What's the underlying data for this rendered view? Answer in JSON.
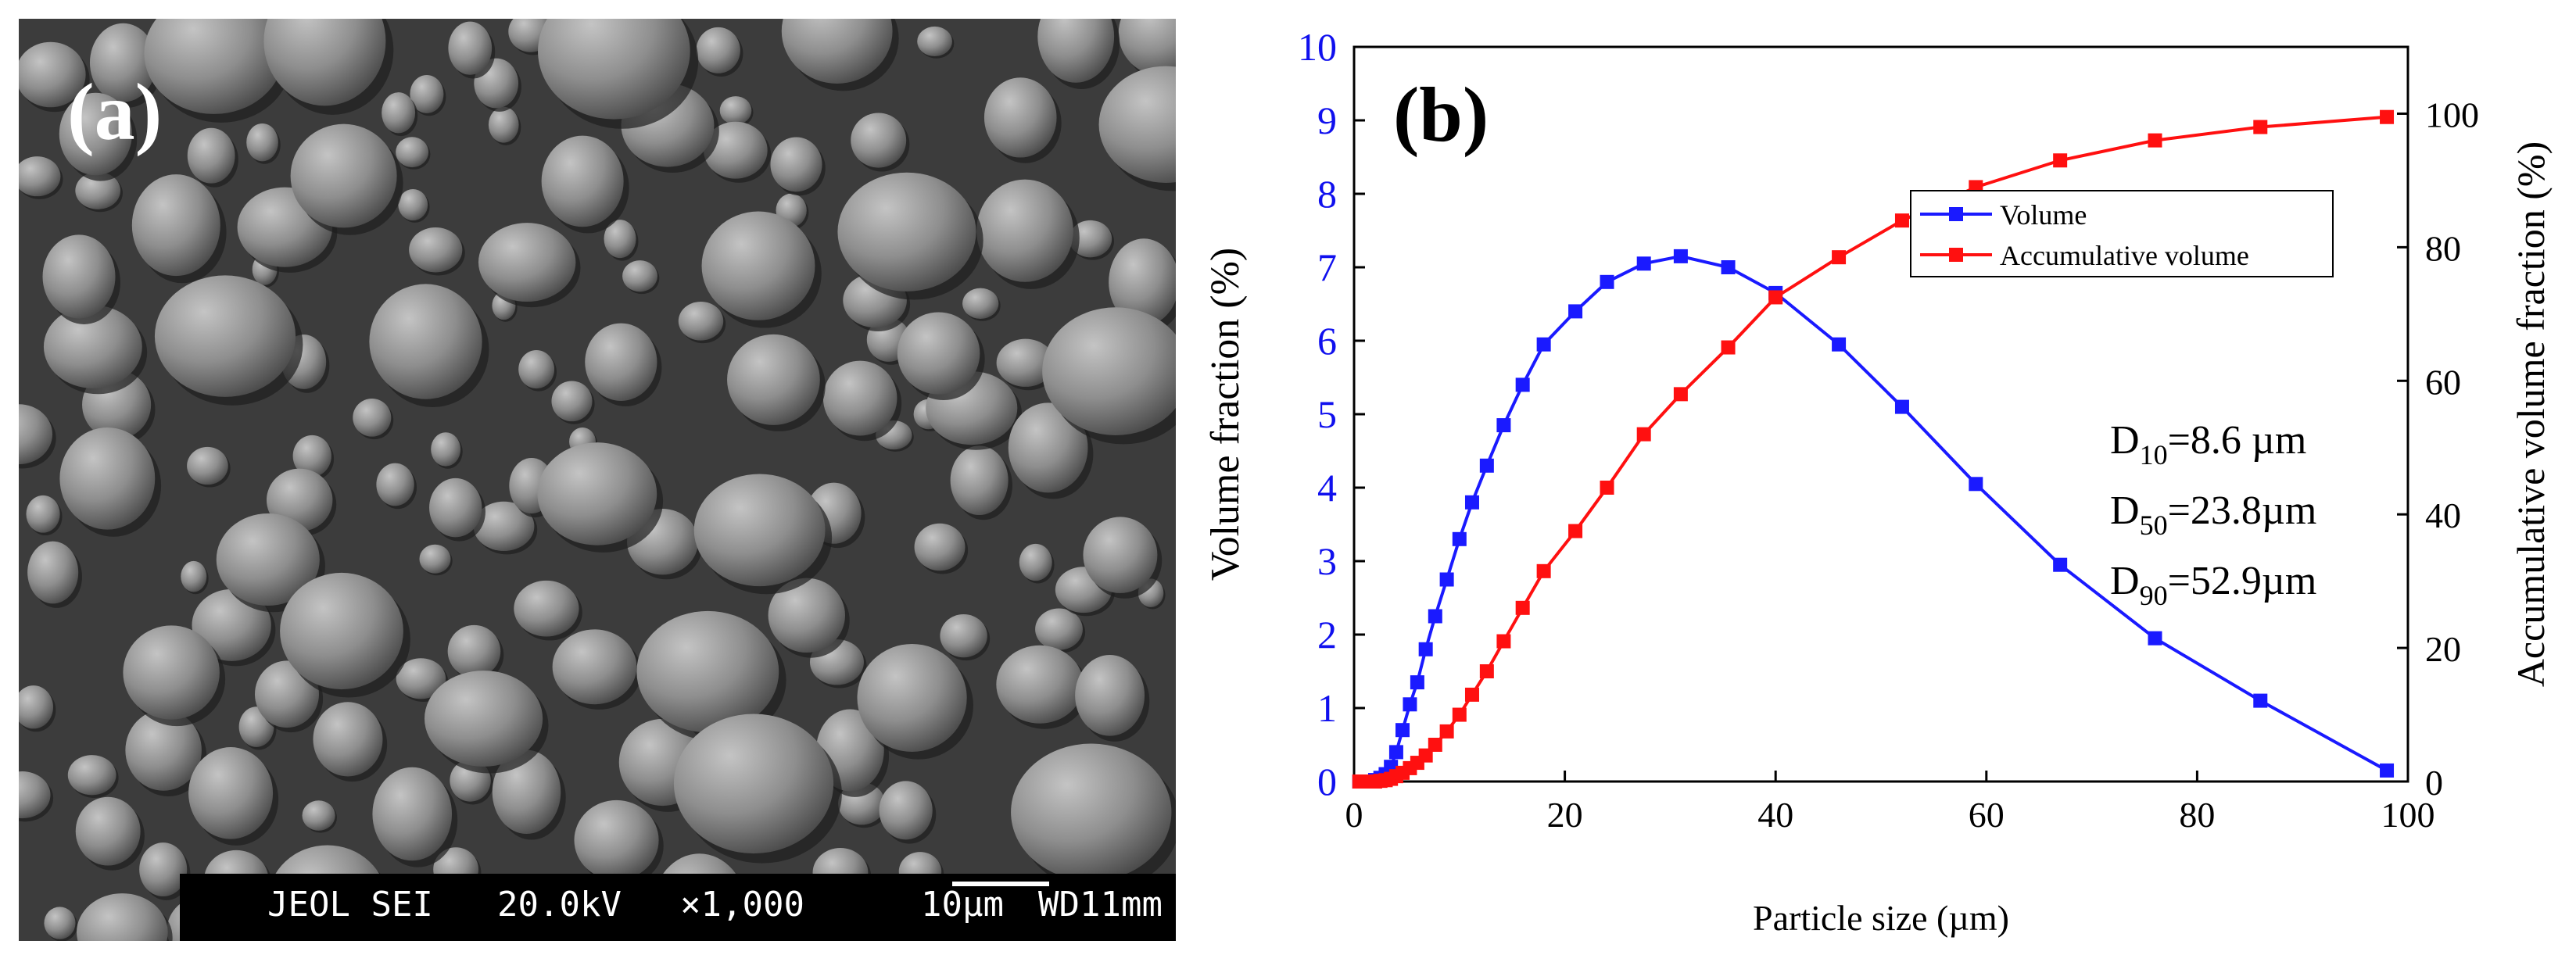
{
  "panel_a": {
    "label": "(a)",
    "sem_info": {
      "instrument": "JEOL SEI",
      "voltage": "20.0kV",
      "magnification": "×1,000",
      "scale": "10µm",
      "working_distance": "WD11mm"
    }
  },
  "chart_data": {
    "type": "line",
    "panel_label": "(b)",
    "xlabel": "Particle size (µm)",
    "ylabel_left": "Volume fraction (%)",
    "ylabel_right": "Accumulative volume fraction (%)",
    "xlim": [
      0,
      100
    ],
    "ylim_left": [
      0,
      10
    ],
    "ylim_right": [
      0,
      110
    ],
    "x_ticks": [
      "0",
      "20",
      "40",
      "60",
      "80",
      "100"
    ],
    "y_left_ticks": [
      "0",
      "1",
      "2",
      "3",
      "4",
      "5",
      "6",
      "7",
      "8",
      "9",
      "10"
    ],
    "y_right_ticks": [
      "0",
      "20",
      "40",
      "60",
      "80",
      "100"
    ],
    "legend": {
      "position": "top-right"
    },
    "annotations": [
      {
        "main": "D",
        "sub": "10",
        "rest": "=8.6 µm"
      },
      {
        "main": "D",
        "sub": "50",
        "rest": "=23.8µm"
      },
      {
        "main": "D",
        "sub": "90",
        "rest": "=52.9µm"
      }
    ],
    "colors": {
      "left_axis": "#1010ee",
      "volume": "#1a1aff",
      "accumulative": "#ff1010"
    },
    "series": [
      {
        "name": "Volume",
        "axis": "left",
        "x": [
          0.5,
          1.0,
          1.5,
          2.0,
          2.5,
          3.0,
          3.5,
          4.0,
          4.6,
          5.3,
          6.0,
          6.8,
          7.7,
          8.8,
          10.0,
          11.2,
          12.6,
          14.2,
          16.0,
          18.0,
          21.0,
          24.0,
          27.5,
          31.0,
          35.5,
          40.0,
          46.0,
          52.0,
          59.0,
          67.0,
          76.0,
          86.0,
          98.0
        ],
        "values": [
          0.0,
          0.0,
          0.0,
          0.02,
          0.05,
          0.1,
          0.2,
          0.4,
          0.7,
          1.05,
          1.35,
          1.8,
          2.25,
          2.75,
          3.3,
          3.8,
          4.3,
          4.85,
          5.4,
          5.95,
          6.4,
          6.8,
          7.05,
          7.15,
          7.0,
          6.65,
          5.95,
          5.1,
          4.05,
          2.95,
          1.95,
          1.1,
          0.15
        ]
      },
      {
        "name": "Accumulative volume",
        "axis": "right",
        "x": [
          0.5,
          1.0,
          1.5,
          2.0,
          2.5,
          3.0,
          3.5,
          4.0,
          4.6,
          5.3,
          6.0,
          6.8,
          7.7,
          8.8,
          10.0,
          11.2,
          12.6,
          14.2,
          16.0,
          18.0,
          21.0,
          24.0,
          27.5,
          31.0,
          35.5,
          40.0,
          46.0,
          52.0,
          59.0,
          67.0,
          76.0,
          86.0,
          98.0
        ],
        "values": [
          0.0,
          0.0,
          0.0,
          0.0,
          0.1,
          0.2,
          0.4,
          0.8,
          1.3,
          2.0,
          2.8,
          3.9,
          5.5,
          7.5,
          10.0,
          13.0,
          16.5,
          21.0,
          26.0,
          31.5,
          37.5,
          44.0,
          52.0,
          58.0,
          65.0,
          72.5,
          78.5,
          84.0,
          89.0,
          93.0,
          96.0,
          98.0,
          99.5
        ]
      }
    ]
  }
}
